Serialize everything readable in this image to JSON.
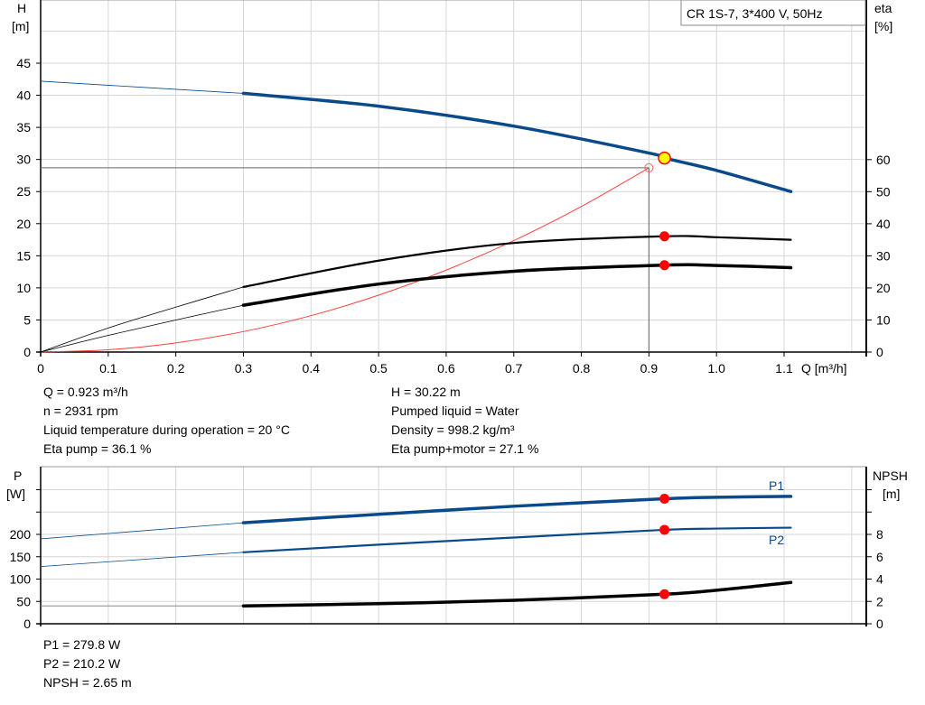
{
  "chart_data": [
    {
      "type": "line",
      "title": "CR 1S-7, 3*400 V, 50Hz",
      "xlabel": "Q [m³/h]",
      "ylabel_left": [
        "H",
        "[m]"
      ],
      "ylabel_right": [
        "eta",
        "[%]"
      ],
      "xlim": [
        0,
        1.2
      ],
      "ylim_left": [
        0,
        50
      ],
      "ylim_right": [
        0,
        70
      ],
      "x_ticks": [
        "0",
        "0.1",
        "0.2",
        "0.3",
        "0.4",
        "0.5",
        "0.6",
        "0.7",
        "0.8",
        "0.9",
        "1.0",
        "1.1"
      ],
      "y_ticks_left": [
        "0",
        "5",
        "10",
        "15",
        "20",
        "25",
        "30",
        "35",
        "40",
        "45"
      ],
      "y_ticks_right": [
        "0",
        "10",
        "20",
        "30",
        "40",
        "50",
        "60"
      ],
      "grid": true,
      "series": [
        {
          "axis": "left",
          "color": "#0b4a8a",
          "x": [
            0,
            0.3,
            0.5,
            0.7,
            0.9,
            0.923,
            1.0,
            1.11
          ],
          "y": [
            42.2,
            40.3,
            38.3,
            35.2,
            31.0,
            30.22,
            28.3,
            25.0
          ]
        },
        {
          "axis": "right",
          "color": "#000000",
          "x": [
            0,
            0.1,
            0.2,
            0.3,
            0.5,
            0.7,
            0.923,
            1.0,
            1.11
          ],
          "y": [
            0,
            7.5,
            14.0,
            20.3,
            28.5,
            34.0,
            36.1,
            35.8,
            35.0
          ]
        },
        {
          "axis": "right",
          "color": "#000000",
          "x": [
            0,
            0.1,
            0.2,
            0.3,
            0.5,
            0.7,
            0.923,
            1.0,
            1.11
          ],
          "y": [
            0,
            5.2,
            10.0,
            14.6,
            21.2,
            25.2,
            27.1,
            27.0,
            26.3
          ]
        },
        {
          "axis": "left",
          "color": "#ff4040",
          "x": [
            0,
            0.1,
            0.2,
            0.3,
            0.4,
            0.5,
            0.6,
            0.7,
            0.8,
            0.9
          ],
          "y": [
            0,
            0.35,
            1.42,
            3.19,
            5.67,
            8.86,
            12.76,
            17.36,
            22.68,
            28.7
          ]
        }
      ],
      "operating_point": {
        "Q": 0.923,
        "H": 30.22,
        "eta_pump": 36.1,
        "eta_pump_motor": 27.1
      },
      "system_point": {
        "Q": 0.9,
        "H": 28.7
      }
    },
    {
      "type": "line",
      "ylabel_left": [
        "P",
        "[W]"
      ],
      "ylabel_right": [
        "NPSH",
        "[m]"
      ],
      "xlim": [
        0,
        1.2
      ],
      "ylim_left": [
        0,
        350
      ],
      "ylim_right": [
        0,
        14
      ],
      "y_ticks_left": [
        "0",
        "50",
        "100",
        "150",
        "200",
        "",
        ""
      ],
      "y_ticks_right": [
        "0",
        "2",
        "4",
        "6",
        "8",
        "",
        ""
      ],
      "grid": true,
      "series": [
        {
          "name": "P1",
          "axis": "left",
          "color": "#0b4a8a",
          "x": [
            0,
            0.3,
            0.5,
            0.7,
            0.923,
            1.0,
            1.11
          ],
          "y": [
            190,
            226,
            245,
            263,
            279.8,
            283,
            285
          ]
        },
        {
          "name": "P2",
          "axis": "left",
          "color": "#0b4a8a",
          "x": [
            0,
            0.3,
            0.5,
            0.7,
            0.923,
            1.0,
            1.11
          ],
          "y": [
            128,
            160,
            177,
            193,
            210.2,
            213,
            215
          ]
        },
        {
          "axis": "right",
          "color": "#000000",
          "x": [
            0,
            0.3,
            0.5,
            0.7,
            0.923,
            1.0,
            1.11
          ],
          "y": [
            1.6,
            1.6,
            1.8,
            2.1,
            2.65,
            3.0,
            3.7
          ]
        }
      ]
    }
  ],
  "info_top_left": [
    "Q = 0.923 m³/h",
    "n = 2931 rpm",
    "Liquid temperature during operation = 20 °C",
    "Eta pump = 36.1 %"
  ],
  "info_top_right": [
    "H = 30.22 m",
    "Pumped liquid = Water",
    "Density = 998.2 kg/m³",
    "Eta pump+motor = 27.1 %"
  ],
  "info_bottom": [
    "P1 = 279.8 W",
    "P2 = 210.2 W",
    "NPSH = 2.65 m"
  ]
}
